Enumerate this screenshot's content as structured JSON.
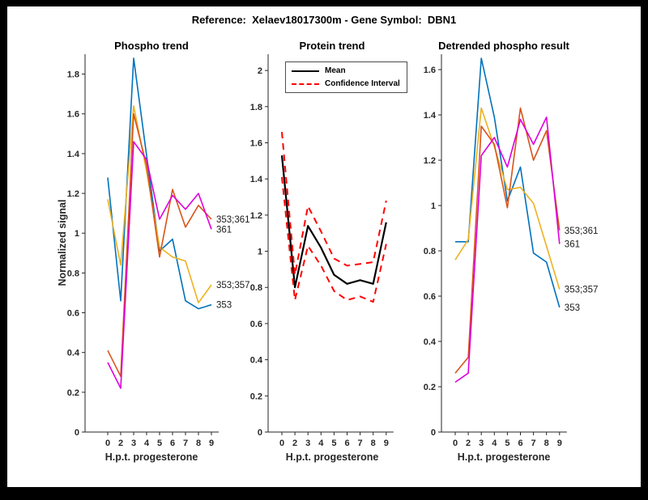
{
  "figure": {
    "title": "Reference:  Xelaev18017300m - Gene Symbol:  DBN1"
  },
  "colors": {
    "series_blue": "#0072BD",
    "series_orange_red": "#D95319",
    "series_yellow": "#EDB120",
    "series_magenta": "#DD00DD",
    "mean_black": "#000000",
    "ci_red": "#FF0000",
    "axis": "#262626"
  },
  "chart_data": [
    {
      "type": "line",
      "title": "Phospho trend",
      "xlabel": "H.p.t. progesterone",
      "ylabel": "Normalized signal",
      "x_ticklabels": [
        "0",
        "2",
        "3",
        "4",
        "5",
        "6",
        "7",
        "8",
        "9"
      ],
      "y_ticklabels": [
        "0",
        "0.2",
        "0.4",
        "0.6",
        "0.8",
        "1",
        "1.2",
        "1.4",
        "1.6",
        "1.8"
      ],
      "ylim": [
        0,
        1.9
      ],
      "grid": false,
      "series": [
        {
          "name": "353",
          "end_label": "353",
          "color": "#0072BD",
          "style": "solid",
          "values": [
            1.28,
            0.66,
            1.88,
            1.39,
            0.91,
            0.97,
            0.66,
            0.62,
            0.64
          ]
        },
        {
          "name": "353;357",
          "end_label": "353;357",
          "color": "#EDB120",
          "style": "solid",
          "values": [
            1.17,
            0.84,
            1.64,
            1.31,
            0.93,
            0.88,
            0.86,
            0.65,
            0.74
          ]
        },
        {
          "name": "353;361",
          "end_label": "353;361",
          "color": "#D95319",
          "style": "solid",
          "values": [
            0.41,
            0.28,
            1.6,
            1.34,
            0.88,
            1.22,
            1.03,
            1.14,
            1.07
          ]
        },
        {
          "name": "361",
          "end_label": "361",
          "color": "#DD00DD",
          "style": "solid",
          "values": [
            0.35,
            0.22,
            1.46,
            1.37,
            1.07,
            1.19,
            1.12,
            1.2,
            1.02
          ]
        }
      ]
    },
    {
      "type": "line",
      "title": "Protein trend",
      "xlabel": "H.p.t. progesterone",
      "ylabel": "",
      "x_ticklabels": [
        "0",
        "2",
        "3",
        "4",
        "5",
        "6",
        "7",
        "8",
        "9"
      ],
      "y_ticklabels": [
        "0",
        "0.2",
        "0.4",
        "0.6",
        "0.8",
        "1",
        "1.2",
        "1.4",
        "1.6",
        "1.8",
        "2"
      ],
      "ylim": [
        0,
        2.09
      ],
      "grid": false,
      "legend": [
        {
          "label": "Mean"
        },
        {
          "label": "Confidence Interval"
        }
      ],
      "series": [
        {
          "name": "Mean",
          "color": "#000000",
          "style": "solid",
          "width": 2.2,
          "values": [
            1.53,
            0.8,
            1.14,
            1.02,
            0.87,
            0.82,
            0.84,
            0.82,
            1.16
          ]
        },
        {
          "name": "CI upper",
          "color": "#FF0000",
          "style": "dashed",
          "width": 2.0,
          "values": [
            1.66,
            0.87,
            1.25,
            1.11,
            0.96,
            0.92,
            0.93,
            0.94,
            1.28
          ]
        },
        {
          "name": "CI lower",
          "color": "#FF0000",
          "style": "dashed",
          "width": 2.0,
          "values": [
            1.41,
            0.73,
            1.03,
            0.92,
            0.78,
            0.73,
            0.75,
            0.72,
            1.04
          ]
        }
      ]
    },
    {
      "type": "line",
      "title": "Detrended phospho result",
      "xlabel": "H.p.t. progesterone",
      "ylabel": "",
      "x_ticklabels": [
        "0",
        "2",
        "3",
        "4",
        "5",
        "6",
        "7",
        "8",
        "9"
      ],
      "y_ticklabels": [
        "0",
        "0.2",
        "0.4",
        "0.6",
        "0.8",
        "1",
        "1.2",
        "1.4",
        "1.6"
      ],
      "ylim": [
        0,
        1.668
      ],
      "grid": false,
      "series": [
        {
          "name": "353",
          "end_label": "353",
          "color": "#0072BD",
          "style": "solid",
          "values": [
            0.84,
            0.84,
            1.65,
            1.39,
            1.02,
            1.17,
            0.79,
            0.75,
            0.55
          ]
        },
        {
          "name": "353;357",
          "end_label": "353;357",
          "color": "#EDB120",
          "style": "solid",
          "values": [
            0.76,
            0.85,
            1.43,
            1.26,
            1.07,
            1.08,
            1.01,
            0.82,
            0.63
          ]
        },
        {
          "name": "353;361",
          "end_label": "353;361",
          "color": "#D95319",
          "style": "solid",
          "values": [
            0.26,
            0.33,
            1.35,
            1.27,
            0.99,
            1.43,
            1.2,
            1.33,
            0.89
          ]
        },
        {
          "name": "361",
          "end_label": "361",
          "color": "#DD00DD",
          "style": "solid",
          "values": [
            0.22,
            0.26,
            1.22,
            1.3,
            1.17,
            1.38,
            1.27,
            1.39,
            0.83
          ]
        }
      ]
    }
  ]
}
